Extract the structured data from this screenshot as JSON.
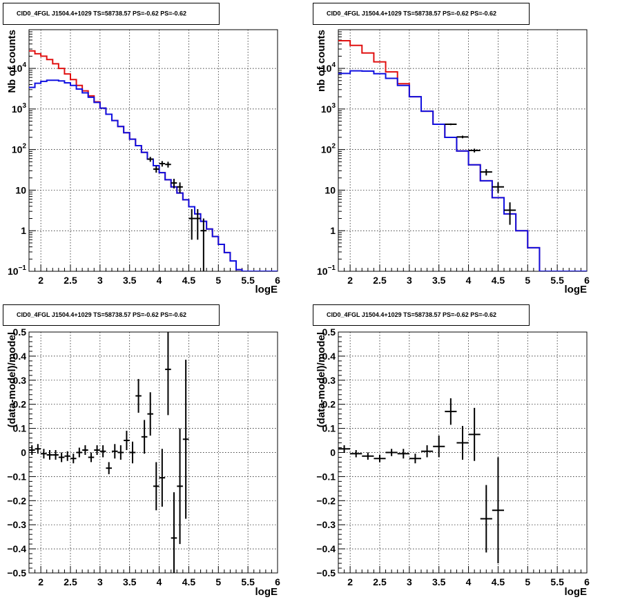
{
  "chart_data": [
    {
      "type": "step",
      "title": "CID0_4FGL J1504.4+1029 TS=58738.57 PS=-0.62 PS=-0.62",
      "xlabel": "logE",
      "ylabel": "Nb of counts",
      "xlim": [
        1.8,
        6
      ],
      "ylim": [
        0.1,
        90000
      ],
      "yscale": "log",
      "grid": true,
      "xticks": [
        "2",
        "2.5",
        "3",
        "3.5",
        "4",
        "4.5",
        "5",
        "5.5",
        "6"
      ],
      "yticks": [
        {
          "v": 0.1,
          "label": "10",
          "sup": "−1"
        },
        {
          "v": 1,
          "label": "1",
          "sup": ""
        },
        {
          "v": 10,
          "label": "10",
          "sup": ""
        },
        {
          "v": 100,
          "label": "10",
          "sup": "2"
        },
        {
          "v": 1000,
          "label": "10",
          "sup": "3"
        },
        {
          "v": 10000,
          "label": "10",
          "sup": "4"
        }
      ],
      "bin_edges": [
        1.8,
        1.9,
        2.0,
        2.1,
        2.2,
        2.3,
        2.4,
        2.5,
        2.6,
        2.7,
        2.8,
        2.9,
        3.0,
        3.1,
        3.2,
        3.3,
        3.4,
        3.5,
        3.6,
        3.7,
        3.8,
        3.9,
        4.0,
        4.1,
        4.2,
        4.3,
        4.4,
        4.5,
        4.6,
        4.7,
        4.8,
        4.9,
        5.0,
        5.1,
        5.2,
        5.3,
        5.4,
        5.5,
        5.6,
        5.7,
        5.8,
        5.9,
        6.0
      ],
      "series": [
        {
          "color": "#e01010",
          "values": [
            27000,
            23000,
            20000,
            16500,
            13000,
            10000,
            7300,
            5300,
            3800,
            2800,
            2100,
            1500,
            1050,
            740,
            520,
            370,
            260,
            180,
            125,
            85,
            58,
            40,
            27,
            18,
            12,
            8.5,
            5.8,
            3.9,
            2.6,
            1.7,
            1.1,
            0.72,
            0.46,
            0.29,
            0.18,
            0.11,
            0.1,
            0.1,
            0.1,
            0.1,
            0.1,
            0.1
          ]
        },
        {
          "color": "#1010e0",
          "values": [
            3400,
            4300,
            4800,
            5100,
            5100,
            4900,
            4400,
            3800,
            3100,
            2500,
            1950,
            1450,
            1050,
            740,
            520,
            370,
            260,
            180,
            125,
            85,
            58,
            40,
            27,
            18,
            12,
            8.5,
            5.8,
            3.9,
            2.6,
            1.7,
            1.1,
            0.72,
            0.46,
            0.29,
            0.18,
            0.11,
            0.1,
            0.1,
            0.1,
            0.1,
            0.1,
            0.1
          ]
        }
      ],
      "points": [
        {
          "x": 3.85,
          "y": 58,
          "ey": 8,
          "ex": 0.05
        },
        {
          "x": 3.95,
          "y": 33,
          "ey": 6,
          "ex": 0.05
        },
        {
          "x": 4.05,
          "y": 45,
          "ey": 7,
          "ex": 0.05
        },
        {
          "x": 4.15,
          "y": 43,
          "ey": 7,
          "ex": 0.05
        },
        {
          "x": 4.25,
          "y": 15,
          "ey": 4,
          "ex": 0.05
        },
        {
          "x": 4.35,
          "y": 12,
          "ey": 3.5,
          "ex": 0.05
        },
        {
          "x": 4.55,
          "y": 2.0,
          "ey": 1.4,
          "ex": 0.05
        },
        {
          "x": 4.65,
          "y": 2.0,
          "ey": 1.4,
          "ex": 0.05
        },
        {
          "x": 4.75,
          "y": 1.0,
          "ey": 1.0,
          "ex": 0.05
        }
      ]
    },
    {
      "type": "step",
      "title": "CID0_4FGL J1504.4+1029 TS=58738.57 PS=-0.62 PS=-0.62",
      "xlabel": "logE",
      "ylabel": "nb of counts",
      "xlim": [
        1.8,
        6
      ],
      "ylim": [
        0.1,
        90000
      ],
      "yscale": "log",
      "grid": true,
      "xticks": [
        "2",
        "2.5",
        "3",
        "3.5",
        "4",
        "4.5",
        "5",
        "5.5",
        "6"
      ],
      "yticks": [
        {
          "v": 0.1,
          "label": "10",
          "sup": "−1"
        },
        {
          "v": 1,
          "label": "1",
          "sup": ""
        },
        {
          "v": 10,
          "label": "10",
          "sup": ""
        },
        {
          "v": 100,
          "label": "10",
          "sup": "2"
        },
        {
          "v": 1000,
          "label": "10",
          "sup": "3"
        },
        {
          "v": 10000,
          "label": "10",
          "sup": "4"
        }
      ],
      "bin_edges": [
        1.8,
        2.0,
        2.2,
        2.4,
        2.6,
        2.8,
        3.0,
        3.2,
        3.4,
        3.6,
        3.8,
        4.0,
        4.2,
        4.4,
        4.6,
        4.8,
        5.0,
        5.2,
        5.4,
        5.6,
        5.8,
        6.0
      ],
      "series": [
        {
          "color": "#e01010",
          "values": [
            48000,
            37000,
            24000,
            14500,
            8200,
            4200,
            2000,
            880,
            420,
            200,
            92,
            42,
            17,
            6.5,
            2.6,
            1.0,
            0.38,
            0.1,
            0.1,
            0.1,
            0.1
          ]
        },
        {
          "color": "#1010e0",
          "values": [
            7500,
            8700,
            8600,
            7400,
            5700,
            3800,
            2000,
            880,
            420,
            200,
            92,
            42,
            17,
            6.5,
            2.6,
            1.0,
            0.38,
            0.1,
            0.1,
            0.1,
            0.1
          ]
        }
      ],
      "points": [
        {
          "x": 3.7,
          "y": 420,
          "ey": 20,
          "ex": 0.1
        },
        {
          "x": 3.9,
          "y": 205,
          "ey": 15,
          "ex": 0.1
        },
        {
          "x": 4.1,
          "y": 95,
          "ey": 10,
          "ex": 0.1
        },
        {
          "x": 4.3,
          "y": 28,
          "ey": 5,
          "ex": 0.1
        },
        {
          "x": 4.5,
          "y": 12,
          "ey": 3.5,
          "ex": 0.1
        },
        {
          "x": 4.7,
          "y": 3.2,
          "ey": 1.8,
          "ex": 0.1
        }
      ]
    },
    {
      "type": "scatter",
      "title": "CID0_4FGL J1504.4+1029 TS=58738.57 PS=-0.62 PS=-0.62",
      "xlabel": "logE",
      "ylabel": "(data-model)/model",
      "xlim": [
        1.8,
        6
      ],
      "ylim": [
        -0.5,
        0.5
      ],
      "grid": true,
      "xticks": [
        "2",
        "2.5",
        "3",
        "3.5",
        "4",
        "4.5",
        "5",
        "5.5",
        "6"
      ],
      "yticks": [
        "−0.5",
        "−0.4",
        "−0.3",
        "−0.2",
        "−0.1",
        "0",
        "0.1",
        "0.2",
        "0.3",
        "0.4",
        "0.5"
      ],
      "points": [
        {
          "x": 1.85,
          "y": 0.01,
          "ey": 0.02,
          "ex": 0.05
        },
        {
          "x": 1.95,
          "y": 0.015,
          "ey": 0.02,
          "ex": 0.05
        },
        {
          "x": 2.05,
          "y": -0.005,
          "ey": 0.02,
          "ex": 0.05
        },
        {
          "x": 2.15,
          "y": -0.01,
          "ey": 0.02,
          "ex": 0.05
        },
        {
          "x": 2.25,
          "y": -0.01,
          "ey": 0.02,
          "ex": 0.05
        },
        {
          "x": 2.35,
          "y": -0.02,
          "ey": 0.02,
          "ex": 0.05
        },
        {
          "x": 2.45,
          "y": -0.015,
          "ey": 0.02,
          "ex": 0.05
        },
        {
          "x": 2.55,
          "y": -0.025,
          "ey": 0.02,
          "ex": 0.05
        },
        {
          "x": 2.65,
          "y": 0.0,
          "ey": 0.02,
          "ex": 0.05
        },
        {
          "x": 2.75,
          "y": 0.01,
          "ey": 0.02,
          "ex": 0.05
        },
        {
          "x": 2.85,
          "y": -0.02,
          "ey": 0.02,
          "ex": 0.05
        },
        {
          "x": 2.95,
          "y": 0.01,
          "ey": 0.02,
          "ex": 0.05
        },
        {
          "x": 3.05,
          "y": 0.005,
          "ey": 0.025,
          "ex": 0.05
        },
        {
          "x": 3.15,
          "y": -0.065,
          "ey": 0.025,
          "ex": 0.05
        },
        {
          "x": 3.25,
          "y": 0.005,
          "ey": 0.03,
          "ex": 0.05
        },
        {
          "x": 3.35,
          "y": 0.0,
          "ey": 0.03,
          "ex": 0.05
        },
        {
          "x": 3.45,
          "y": 0.05,
          "ey": 0.04,
          "ex": 0.05
        },
        {
          "x": 3.55,
          "y": 0.0,
          "ey": 0.045,
          "ex": 0.05
        },
        {
          "x": 3.65,
          "y": 0.235,
          "ey": 0.07,
          "ex": 0.05
        },
        {
          "x": 3.75,
          "y": 0.065,
          "ey": 0.07,
          "ex": 0.05
        },
        {
          "x": 3.85,
          "y": 0.16,
          "ey": 0.09,
          "ex": 0.05
        },
        {
          "x": 3.95,
          "y": -0.14,
          "ey": 0.1,
          "ex": 0.05
        },
        {
          "x": 4.05,
          "y": -0.105,
          "ey": 0.12,
          "ex": 0.05
        },
        {
          "x": 4.15,
          "y": 0.345,
          "ey": 0.19,
          "ex": 0.05
        },
        {
          "x": 4.25,
          "y": -0.355,
          "ey": 0.19,
          "ex": 0.05
        },
        {
          "x": 4.35,
          "y": -0.14,
          "ey": 0.24,
          "ex": 0.05
        },
        {
          "x": 4.45,
          "y": 0.055,
          "ey": 0.33,
          "ex": 0.05
        }
      ]
    },
    {
      "type": "scatter",
      "title": "CID0_4FGL J1504.4+1029 TS=58738.57 PS=-0.62 PS=-0.62",
      "xlabel": "logE",
      "ylabel": "(data-model)/model",
      "xlim": [
        1.8,
        6
      ],
      "ylim": [
        -0.5,
        0.5
      ],
      "grid": true,
      "xticks": [
        "2",
        "2.5",
        "3",
        "3.5",
        "4",
        "4.5",
        "5",
        "5.5",
        "6"
      ],
      "yticks": [
        "−0.5",
        "−0.4",
        "−0.3",
        "−0.2",
        "−0.1",
        "0",
        "0.1",
        "0.2",
        "0.3",
        "0.4",
        "0.5"
      ],
      "points": [
        {
          "x": 1.9,
          "y": 0.015,
          "ey": 0.015,
          "ex": 0.1
        },
        {
          "x": 2.1,
          "y": -0.005,
          "ey": 0.015,
          "ex": 0.1
        },
        {
          "x": 2.3,
          "y": -0.015,
          "ey": 0.015,
          "ex": 0.1
        },
        {
          "x": 2.5,
          "y": -0.025,
          "ey": 0.015,
          "ex": 0.1
        },
        {
          "x": 2.7,
          "y": 0.0,
          "ey": 0.015,
          "ex": 0.1
        },
        {
          "x": 2.9,
          "y": -0.005,
          "ey": 0.02,
          "ex": 0.1
        },
        {
          "x": 3.1,
          "y": -0.025,
          "ey": 0.02,
          "ex": 0.1
        },
        {
          "x": 3.3,
          "y": 0.005,
          "ey": 0.025,
          "ex": 0.1
        },
        {
          "x": 3.5,
          "y": 0.025,
          "ey": 0.045,
          "ex": 0.1
        },
        {
          "x": 3.7,
          "y": 0.17,
          "ey": 0.055,
          "ex": 0.1
        },
        {
          "x": 3.9,
          "y": 0.04,
          "ey": 0.07,
          "ex": 0.1
        },
        {
          "x": 4.1,
          "y": 0.075,
          "ey": 0.11,
          "ex": 0.1
        },
        {
          "x": 4.3,
          "y": -0.275,
          "ey": 0.14,
          "ex": 0.1
        },
        {
          "x": 4.5,
          "y": -0.24,
          "ey": 0.22,
          "ex": 0.1
        }
      ]
    }
  ]
}
